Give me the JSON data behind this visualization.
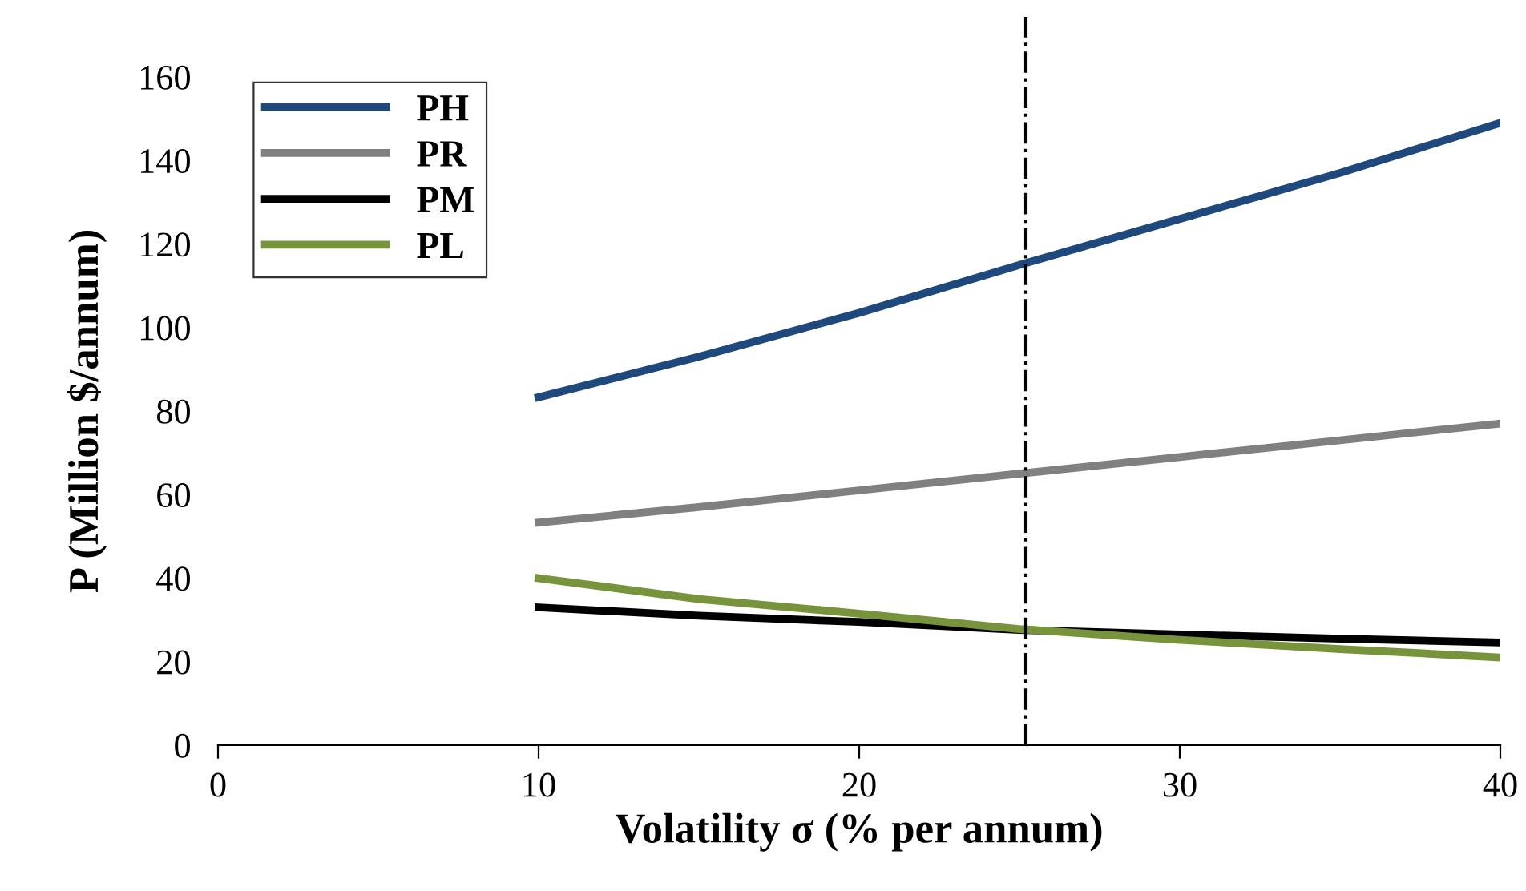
{
  "chart_data": {
    "type": "line",
    "xlabel": "Volatility σ (% per annum)",
    "ylabel": "P (Million $/annum)",
    "x": [
      10,
      15,
      20,
      25,
      30,
      35,
      40
    ],
    "series": [
      {
        "name": "PH",
        "color": "#1f497d",
        "values": [
          83.3,
          93,
          103.5,
          115,
          126,
          137,
          149
        ]
      },
      {
        "name": "PR",
        "color": "#808080",
        "values": [
          53.3,
          57,
          61,
          65,
          69,
          73,
          77
        ]
      },
      {
        "name": "PM",
        "color": "#000000",
        "values": [
          33,
          31,
          29.5,
          27.6,
          26.5,
          25.5,
          24.6
        ]
      },
      {
        "name": "PL",
        "color": "#77933c",
        "values": [
          40,
          35,
          31.5,
          27.8,
          25.2,
          23,
          21
        ]
      }
    ],
    "xlim": [
      0,
      40
    ],
    "xticks": [
      0,
      10,
      20,
      30,
      40
    ],
    "ylim": [
      0,
      160
    ],
    "yticks": [
      0,
      20,
      40,
      60,
      80,
      100,
      120,
      140,
      160
    ],
    "ref_lines": [
      {
        "axis": "x",
        "value": 25.2,
        "line_style": "dashdot",
        "color": "#000000"
      }
    ],
    "grid": false,
    "legend": "top left",
    "marker": "none",
    "line_style": "solid"
  }
}
